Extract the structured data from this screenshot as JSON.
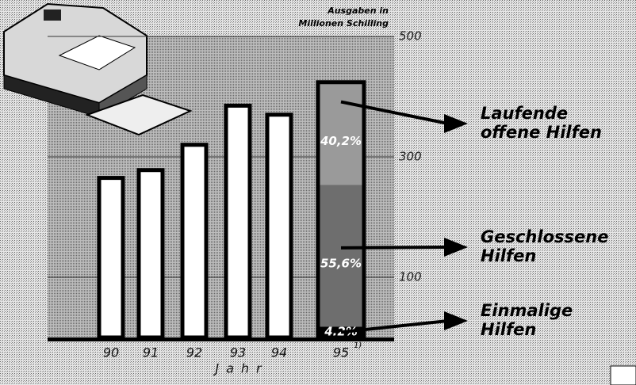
{
  "chart_data": {
    "type": "bar",
    "y_label": [
      "Ausgaben in",
      "Millionen Schilling"
    ],
    "x_label": "Jahr",
    "categories": [
      "90",
      "91",
      "92",
      "93",
      "94",
      "95"
    ],
    "footnote": "1)",
    "values": [
      265,
      278,
      320,
      385,
      370,
      424
    ],
    "ylim": [
      0,
      500
    ],
    "yticks": [
      100,
      300,
      500
    ],
    "grid": true,
    "stack": {
      "values": [
        4.2,
        55.6,
        40.2
      ],
      "value_labels": [
        "4,2%",
        "55,6%",
        "40,2%"
      ],
      "names": [
        [
          "Einmalige",
          "Hilfen"
        ],
        [
          "Geschlossene",
          "Hilfen"
        ],
        [
          "Laufende",
          "offene Hilfen"
        ]
      ],
      "colors": [
        "#000000",
        "#6e6e6e",
        "#9a9a9a"
      ]
    }
  }
}
